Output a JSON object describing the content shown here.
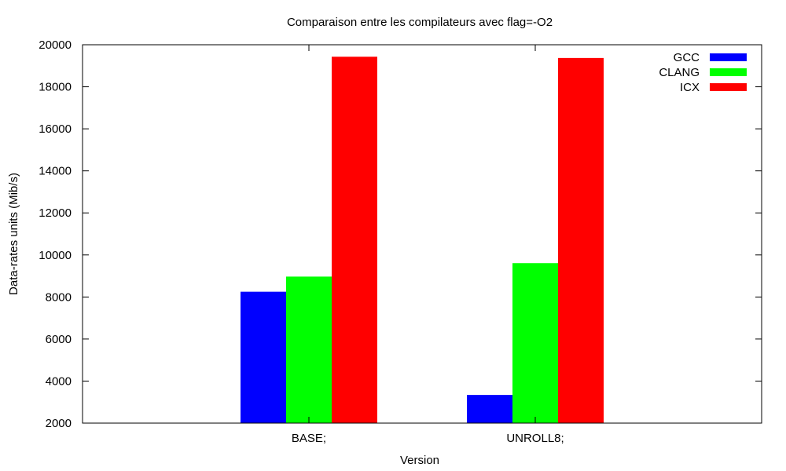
{
  "chart_data": {
    "type": "bar",
    "title": "Comparaison entre les compilateurs avec flag=-O2",
    "xlabel": "Version",
    "ylabel": "Data-rates units (Mib/s)",
    "categories": [
      "BASE;",
      "UNROLL8;"
    ],
    "series": [
      {
        "name": "GCC",
        "color": "#0000ff",
        "values": [
          8250,
          3340
        ]
      },
      {
        "name": "CLANG",
        "color": "#00ff00",
        "values": [
          8970,
          9610
        ]
      },
      {
        "name": "ICX",
        "color": "#ff0000",
        "values": [
          19430,
          19370
        ]
      }
    ],
    "ylim": [
      2000,
      20000
    ],
    "yticks": [
      2000,
      4000,
      6000,
      8000,
      10000,
      12000,
      14000,
      16000,
      18000,
      20000
    ],
    "legend_position": "top-right",
    "grid": false
  }
}
